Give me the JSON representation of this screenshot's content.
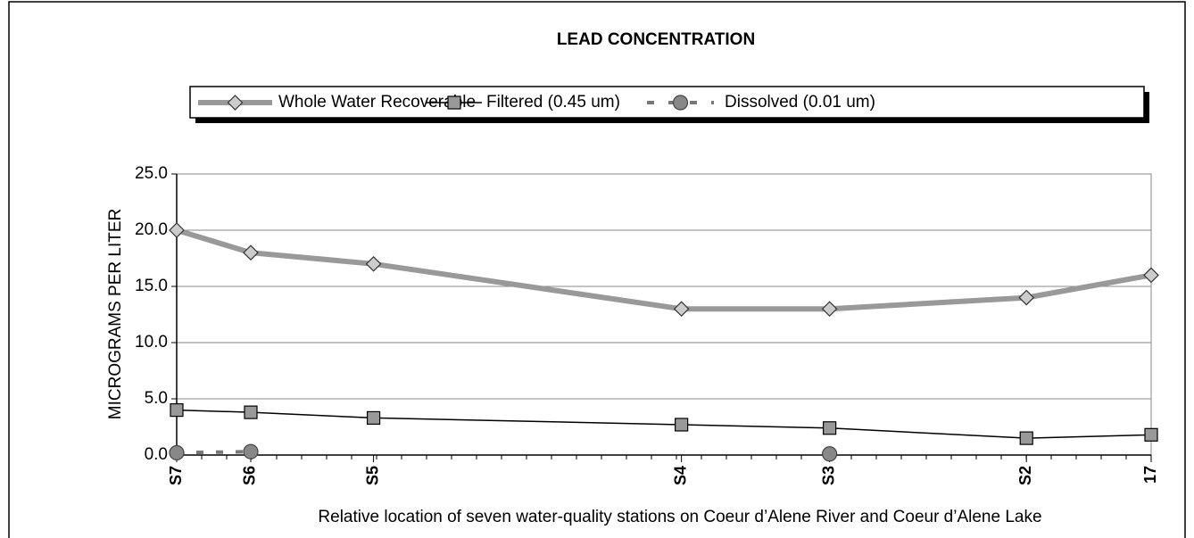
{
  "chart_data": {
    "type": "line",
    "title": "LEAD CONCENTRATION",
    "y_label": "MICROGRAMS PER LITER",
    "x_label": "Relative location of seven water-quality stations on Coeur d’Alene River and Coeur d’Alene Lake",
    "categories": [
      "S7",
      "S6",
      "S5",
      "S4",
      "S3",
      "S2",
      "17"
    ],
    "series": [
      {
        "name": "Whole Water Recoverable",
        "color": "#999999",
        "values": [
          20,
          18,
          17,
          13,
          13,
          14,
          16
        ]
      },
      {
        "name": "Filtered (0.45 um)",
        "color": "#000000",
        "values": [
          4.0,
          3.8,
          3.3,
          2.7,
          2.4,
          1.5,
          1.8
        ]
      },
      {
        "name": "Dissolved (0.01 um)",
        "color": "#777777",
        "values": [
          0.2,
          0.3,
          null,
          null,
          0.1,
          null,
          null
        ]
      }
    ],
    "ylim": [
      0,
      25
    ],
    "yticks": [
      {
        "value": 0,
        "label": "0.0"
      },
      {
        "value": 5,
        "label": "5.0"
      },
      {
        "value": 10,
        "label": "10.0"
      },
      {
        "value": 15,
        "label": "15.0"
      },
      {
        "value": 20,
        "label": "20.0"
      },
      {
        "value": 25,
        "label": "25.0"
      }
    ],
    "grid": true,
    "legend": "top"
  }
}
